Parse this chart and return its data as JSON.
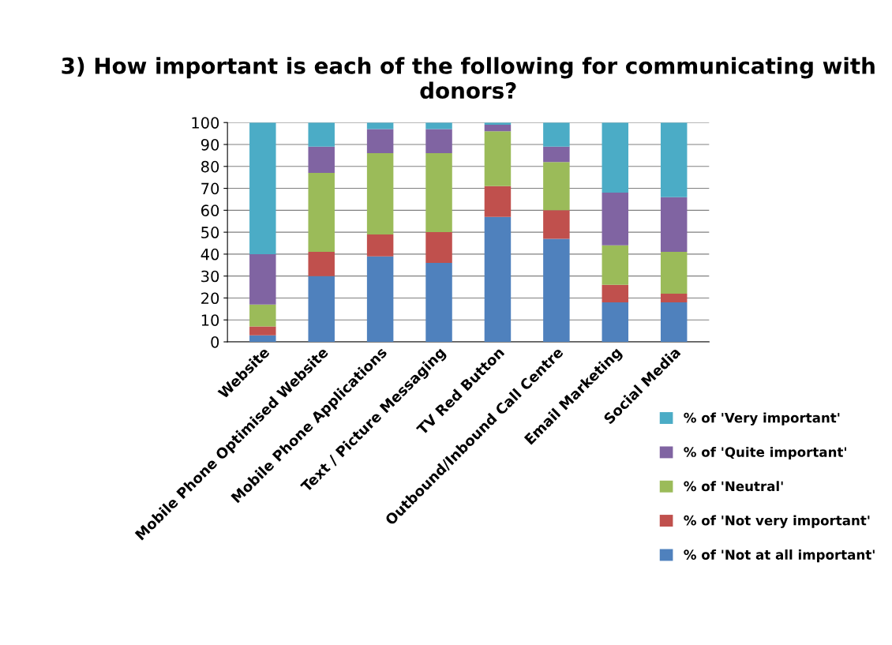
{
  "chart_data": {
    "type": "bar",
    "title": "3) How important is each of the following for communicating with donors?",
    "categories": [
      "Website",
      "Mobile Phone Optimised Website",
      "Mobile Phone Applications",
      "Text / Picture Messaging",
      "TV Red Button",
      "Outbound/Inbound Call Centre",
      "Email Marketing",
      "Social Media"
    ],
    "stacked": true,
    "series": [
      {
        "name": "% of 'Not at all important'",
        "color": "#4f81bd",
        "values": [
          3,
          30,
          39,
          36,
          57,
          47,
          18,
          18
        ]
      },
      {
        "name": "% of 'Not very important'",
        "color": "#c0504d",
        "values": [
          4,
          11,
          10,
          14,
          14,
          13,
          8,
          4
        ]
      },
      {
        "name": "% of 'Neutral'",
        "color": "#9bbb59",
        "values": [
          10,
          36,
          37,
          36,
          25,
          22,
          18,
          19
        ]
      },
      {
        "name": "% of 'Quite important'",
        "color": "#8064a2",
        "values": [
          23,
          12,
          11,
          11,
          3,
          7,
          24,
          25
        ]
      },
      {
        "name": "% of 'Very important'",
        "color": "#4bacc6",
        "values": [
          60,
          11,
          3,
          3,
          1,
          11,
          32,
          34
        ]
      }
    ],
    "ylim": [
      0,
      100
    ],
    "yticks": [
      0,
      10,
      20,
      30,
      40,
      50,
      60,
      70,
      80,
      90,
      100
    ],
    "grid": "y",
    "legend": "bottom right"
  }
}
